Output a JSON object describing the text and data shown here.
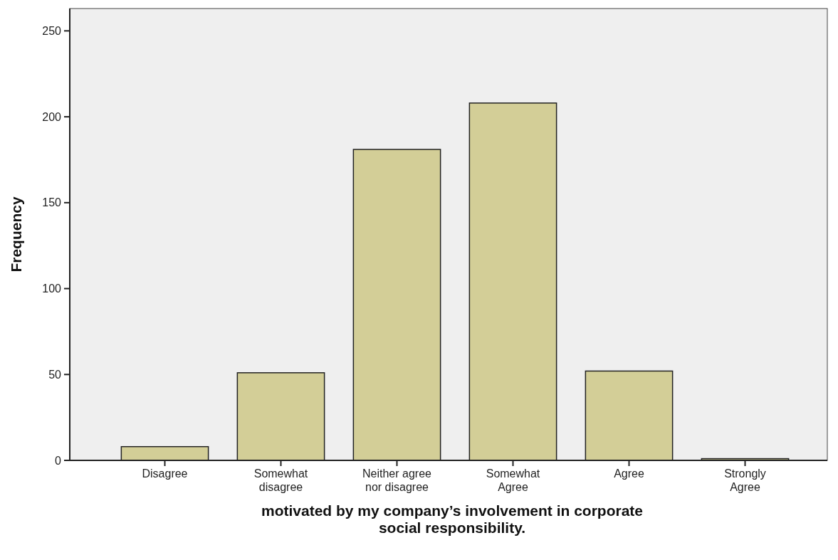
{
  "chart_data": {
    "type": "bar",
    "xlabel": "motivated by my company’s involvement in corporate social responsibility.",
    "ylabel": "Frequency",
    "categories": [
      "Disagree",
      "Somewhat disagree",
      "Neither agree nor disagree",
      "Somewhat Agree",
      "Agree",
      "Strongly Agree"
    ],
    "values": [
      8,
      51,
      181,
      208,
      52,
      1
    ],
    "color": "#d3ce97",
    "ylim": [
      0,
      263
    ],
    "yticks": [
      0,
      50,
      100,
      150,
      200,
      250
    ],
    "grid": false
  }
}
